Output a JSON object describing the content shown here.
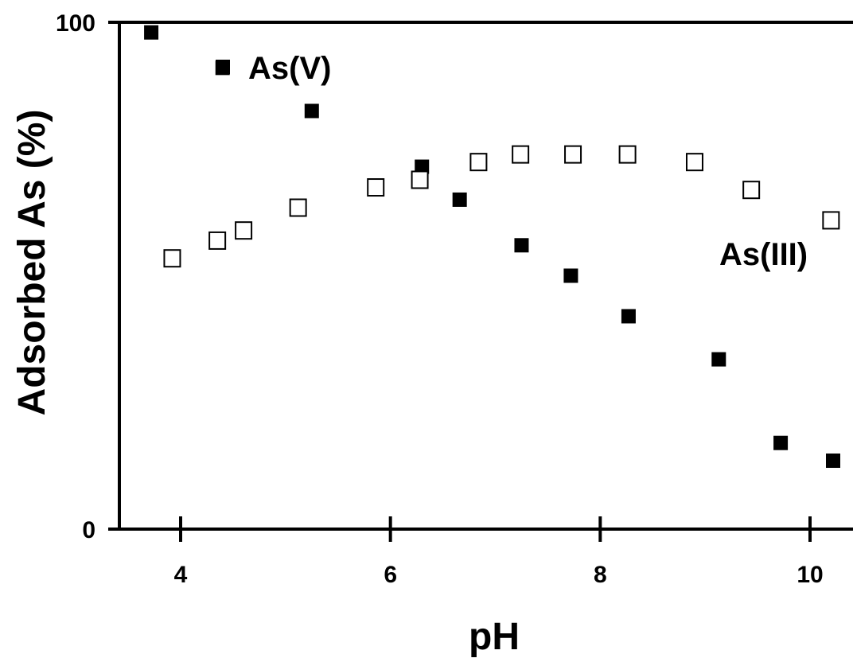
{
  "chart_data": {
    "type": "scatter",
    "title": "",
    "xlabel": "pH",
    "ylabel": "Adsorbed As (%)",
    "xlim": [
      3.45,
      10.4
    ],
    "ylim": [
      0,
      100
    ],
    "x_ticks": [
      4,
      6,
      8,
      10
    ],
    "y_ticks": [
      0,
      100
    ],
    "x_tick_labels": [
      "4",
      "6",
      "8",
      "10"
    ],
    "y_tick_labels": [
      "0",
      "100"
    ],
    "grid": false,
    "series": [
      {
        "name": "As(V)",
        "marker": "filled-square",
        "color": "#000000",
        "x": [
          3.72,
          4.4,
          5.25,
          6.3,
          6.66,
          7.25,
          7.72,
          8.27,
          9.13,
          9.72,
          10.22
        ],
        "y": [
          98.0,
          91.0,
          82.5,
          71.5,
          65.0,
          56.0,
          50.0,
          42.0,
          33.5,
          17.0,
          13.5
        ]
      },
      {
        "name": "As(III)",
        "marker": "open-square",
        "color": "#000000",
        "x": [
          3.92,
          4.35,
          4.6,
          5.12,
          5.86,
          6.28,
          6.84,
          7.24,
          7.74,
          8.26,
          8.9,
          9.44,
          10.2
        ],
        "y": [
          53.5,
          57.0,
          59.0,
          63.5,
          67.5,
          69.0,
          72.5,
          74.0,
          74.0,
          74.0,
          72.5,
          67.0,
          61.0
        ]
      }
    ],
    "legend": "inline labels next to series"
  }
}
